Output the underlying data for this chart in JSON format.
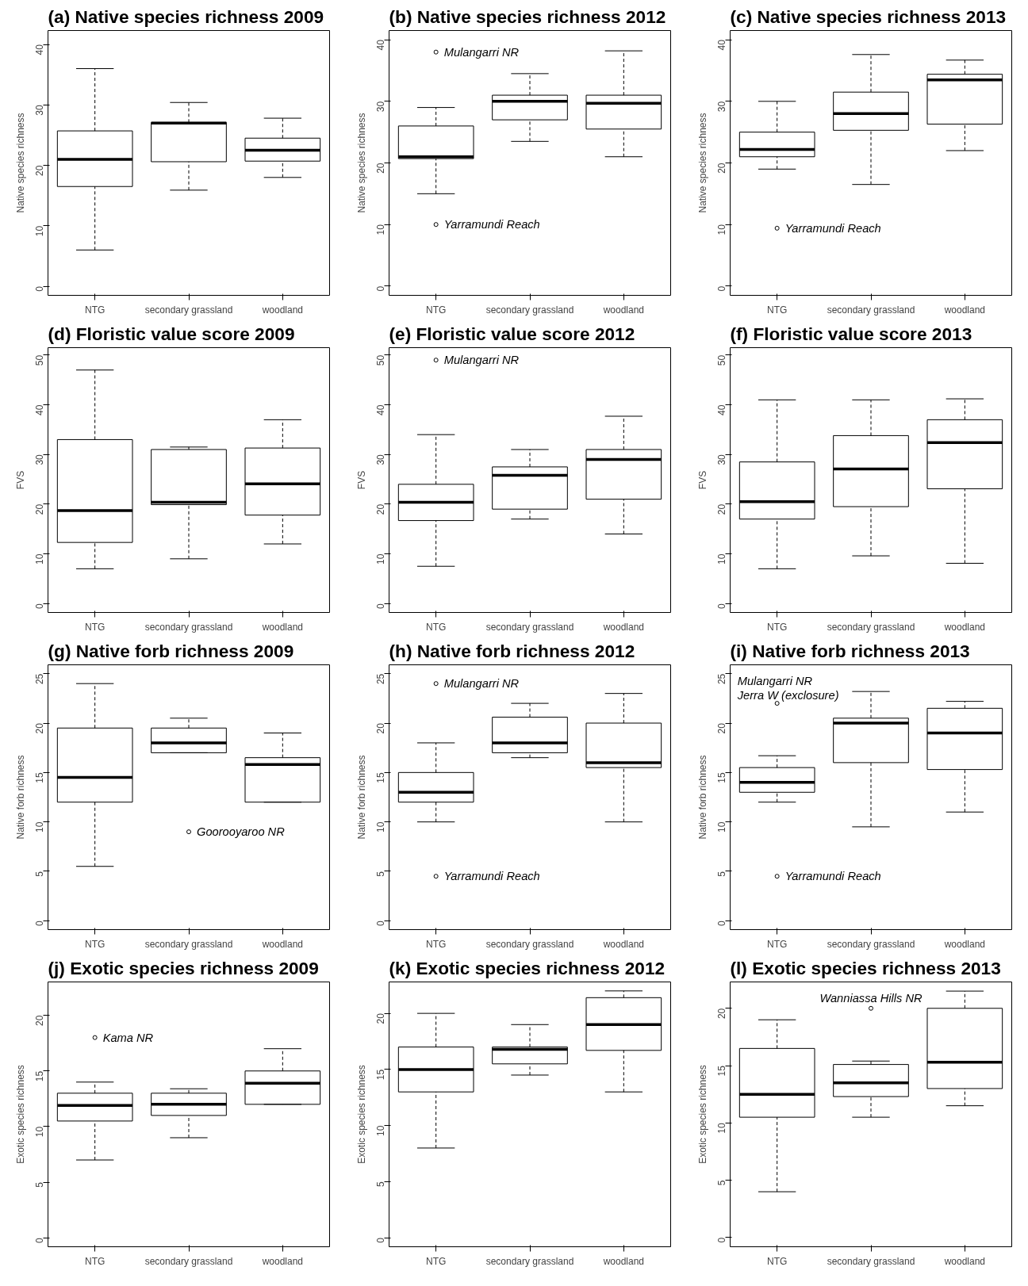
{
  "chart_data": [
    {
      "type": "box",
      "title": "(a) Native species richness 2009",
      "ylabel": "Native species richness",
      "categories": [
        "NTG",
        "secondary grassland",
        "woodland"
      ],
      "ylim": [
        -1.5,
        42.3
      ],
      "yticks": [
        0,
        10,
        20,
        30,
        40
      ],
      "boxes": [
        {
          "low": 6,
          "q1": 16.5,
          "median": 21,
          "q3": 25.7,
          "high": 36
        },
        {
          "low": 15.9,
          "q1": 20.6,
          "median": 27,
          "q3": 27.1,
          "high": 30.4
        },
        {
          "low": 18,
          "q1": 20.7,
          "median": 22.5,
          "q3": 24.5,
          "high": 27.8
        }
      ]
    },
    {
      "type": "box",
      "title": "(b) Native species richness 2012",
      "ylabel": "Native species richness",
      "categories": [
        "NTG",
        "secondary grassland",
        "woodland"
      ],
      "ylim": [
        -1.5,
        41.5
      ],
      "yticks": [
        0,
        10,
        20,
        30,
        40
      ],
      "boxes": [
        {
          "low": 15,
          "q1": 20.7,
          "median": 21,
          "q3": 26,
          "high": 29
        },
        {
          "low": 23.5,
          "q1": 27,
          "median": 30,
          "q3": 31,
          "high": 34.5
        },
        {
          "low": 21,
          "q1": 25.5,
          "median": 29.7,
          "q3": 31,
          "high": 38.2
        }
      ],
      "series": [
        {
          "type": "scatter",
          "x": [
            "NTG",
            "NTG"
          ],
          "values": [
            38,
            10
          ]
        }
      ],
      "annotations": [
        {
          "text": "Mulangarri NR",
          "x": "NTG",
          "y": 38
        },
        {
          "text": "Yarramundi Reach",
          "x": "NTG",
          "y": 10
        }
      ]
    },
    {
      "type": "box",
      "title": "(c) Native species richness 2013",
      "ylabel": "Native species richness",
      "categories": [
        "NTG",
        "secondary grassland",
        "woodland"
      ],
      "ylim": [
        -1.5,
        41.5
      ],
      "yticks": [
        0,
        10,
        20,
        30,
        40
      ],
      "boxes": [
        {
          "low": 19,
          "q1": 21,
          "median": 22.2,
          "q3": 25,
          "high": 30
        },
        {
          "low": 16.5,
          "q1": 25.3,
          "median": 28,
          "q3": 31.5,
          "high": 37.6
        },
        {
          "low": 22,
          "q1": 26.3,
          "median": 33.5,
          "q3": 34.4,
          "high": 36.7
        }
      ],
      "series": [
        {
          "type": "scatter",
          "x": [
            "NTG"
          ],
          "values": [
            9.4
          ]
        }
      ],
      "annotations": [
        {
          "text": "Yarramundi Reach",
          "x": "NTG",
          "y": 9.4
        }
      ]
    },
    {
      "type": "box",
      "title": "(d) Floristic value score 2009",
      "ylabel": "FVS",
      "categories": [
        "NTG",
        "secondary grassland",
        "woodland"
      ],
      "ylim": [
        -1.8,
        51.5
      ],
      "yticks": [
        0,
        10,
        20,
        30,
        40,
        50
      ],
      "boxes": [
        {
          "low": 7,
          "q1": 12.3,
          "median": 18.7,
          "q3": 33,
          "high": 47
        },
        {
          "low": 9,
          "q1": 19.9,
          "median": 20.4,
          "q3": 31,
          "high": 31.5
        },
        {
          "low": 12,
          "q1": 17.8,
          "median": 24.1,
          "q3": 31.3,
          "high": 37
        }
      ]
    },
    {
      "type": "box",
      "title": "(e) Floristic value score 2012",
      "ylabel": "FVS",
      "categories": [
        "NTG",
        "secondary grassland",
        "woodland"
      ],
      "ylim": [
        -1.8,
        51.5
      ],
      "yticks": [
        0,
        10,
        20,
        30,
        40,
        50
      ],
      "boxes": [
        {
          "low": 7.5,
          "q1": 16.7,
          "median": 20.4,
          "q3": 24,
          "high": 34
        },
        {
          "low": 17,
          "q1": 19,
          "median": 25.8,
          "q3": 27.5,
          "high": 31
        },
        {
          "low": 14,
          "q1": 21,
          "median": 29,
          "q3": 31,
          "high": 37.7
        }
      ],
      "series": [
        {
          "type": "scatter",
          "x": [
            "NTG"
          ],
          "values": [
            49
          ]
        }
      ],
      "annotations": [
        {
          "text": "Mulangarri NR",
          "x": "NTG",
          "y": 49
        }
      ]
    },
    {
      "type": "box",
      "title": "(f) Floristic value score 2013",
      "ylabel": "FVS",
      "categories": [
        "NTG",
        "secondary grassland",
        "woodland"
      ],
      "ylim": [
        -1.8,
        51.5
      ],
      "yticks": [
        0,
        10,
        20,
        30,
        40,
        50
      ],
      "boxes": [
        {
          "low": 7,
          "q1": 17,
          "median": 20.5,
          "q3": 28.5,
          "high": 41
        },
        {
          "low": 9.6,
          "q1": 19.5,
          "median": 27.1,
          "q3": 33.8,
          "high": 41
        },
        {
          "low": 8.1,
          "q1": 23.1,
          "median": 32.4,
          "q3": 37,
          "high": 41.2
        }
      ]
    },
    {
      "type": "box",
      "title": "(g) Native forb richness 2009",
      "ylabel": "Native forb richness",
      "categories": [
        "NTG",
        "secondary grassland",
        "woodland"
      ],
      "ylim": [
        -0.9,
        25.9
      ],
      "yticks": [
        0,
        5,
        10,
        15,
        20,
        25
      ],
      "boxes": [
        {
          "low": 5.5,
          "q1": 12,
          "median": 14.5,
          "q3": 19.5,
          "high": 24
        },
        {
          "low": 17,
          "q1": 17,
          "median": 18,
          "q3": 19.5,
          "high": 20.5
        },
        {
          "low": 12,
          "q1": 12,
          "median": 15.8,
          "q3": 16.5,
          "high": 19
        }
      ],
      "series": [
        {
          "type": "scatter",
          "x": [
            "secondary grassland"
          ],
          "values": [
            9
          ]
        }
      ],
      "annotations": [
        {
          "text": "Goorooyaroo NR",
          "x": "secondary grassland",
          "y": 9
        }
      ]
    },
    {
      "type": "box",
      "title": "(h) Native forb richness 2012",
      "ylabel": "Native forb richness",
      "categories": [
        "NTG",
        "secondary grassland",
        "woodland"
      ],
      "ylim": [
        -0.9,
        25.9
      ],
      "yticks": [
        0,
        5,
        10,
        15,
        20,
        25
      ],
      "boxes": [
        {
          "low": 10,
          "q1": 12,
          "median": 13,
          "q3": 15,
          "high": 18
        },
        {
          "low": 16.5,
          "q1": 17,
          "median": 18,
          "q3": 20.6,
          "high": 22
        },
        {
          "low": 10,
          "q1": 15.5,
          "median": 16,
          "q3": 20,
          "high": 23
        }
      ],
      "series": [
        {
          "type": "scatter",
          "x": [
            "NTG",
            "NTG"
          ],
          "values": [
            24,
            4.5
          ]
        }
      ],
      "annotations": [
        {
          "text": "Mulangarri NR",
          "x": "NTG",
          "y": 24
        },
        {
          "text": "Yarramundi Reach",
          "x": "NTG",
          "y": 4.5
        }
      ]
    },
    {
      "type": "box",
      "title": "(i) Native forb richness 2013",
      "ylabel": "Native forb richness",
      "categories": [
        "NTG",
        "secondary grassland",
        "woodland"
      ],
      "ylim": [
        -0.9,
        25.9
      ],
      "yticks": [
        0,
        5,
        10,
        15,
        20,
        25
      ],
      "boxes": [
        {
          "low": 12,
          "q1": 13,
          "median": 14,
          "q3": 15.5,
          "high": 16.7
        },
        {
          "low": 9.5,
          "q1": 16,
          "median": 20,
          "q3": 20.5,
          "high": 23.2
        },
        {
          "low": 11,
          "q1": 15.3,
          "median": 19,
          "q3": 21.5,
          "high": 22.2
        }
      ],
      "series": [
        {
          "type": "scatter",
          "x": [
            "NTG",
            "NTG"
          ],
          "values": [
            22,
            4.5
          ]
        }
      ],
      "annotations": [
        {
          "text": "Mulangarri NR",
          "x": "NTG",
          "y": 22
        },
        {
          "text": "Jerra W (exclosure)",
          "x": "NTG",
          "y": 22
        },
        {
          "text": "Yarramundi Reach",
          "x": "NTG",
          "y": 4.5
        }
      ]
    },
    {
      "type": "box",
      "title": "(j) Exotic species richness 2009",
      "ylabel": "Exotic species richness",
      "categories": [
        "NTG",
        "secondary grassland",
        "woodland"
      ],
      "ylim": [
        -0.8,
        23
      ],
      "yticks": [
        0,
        5,
        10,
        15,
        20
      ],
      "boxes": [
        {
          "low": 7,
          "q1": 10.5,
          "median": 11.9,
          "q3": 13,
          "high": 14
        },
        {
          "low": 9,
          "q1": 11,
          "median": 12,
          "q3": 13,
          "high": 13.4
        },
        {
          "low": 12,
          "q1": 12,
          "median": 13.9,
          "q3": 15,
          "high": 17
        }
      ],
      "series": [
        {
          "type": "scatter",
          "x": [
            "NTG"
          ],
          "values": [
            18
          ]
        }
      ],
      "annotations": [
        {
          "text": "Kama NR",
          "x": "NTG",
          "y": 18
        }
      ]
    },
    {
      "type": "box",
      "title": "(k) Exotic species richness 2012",
      "ylabel": "Exotic species richness",
      "categories": [
        "NTG",
        "secondary grassland",
        "woodland"
      ],
      "ylim": [
        -0.8,
        22.8
      ],
      "yticks": [
        0,
        5,
        10,
        15,
        20
      ],
      "boxes": [
        {
          "low": 8,
          "q1": 13,
          "median": 15,
          "q3": 17,
          "high": 20
        },
        {
          "low": 14.5,
          "q1": 15.5,
          "median": 16.8,
          "q3": 17,
          "high": 19
        },
        {
          "low": 13,
          "q1": 16.7,
          "median": 19,
          "q3": 21.4,
          "high": 22
        }
      ]
    },
    {
      "type": "box",
      "title": "(l) Exotic species richness 2013",
      "ylabel": "Exotic species richness",
      "categories": [
        "NTG",
        "secondary grassland",
        "woodland"
      ],
      "ylim": [
        -0.8,
        22.3
      ],
      "yticks": [
        0,
        5,
        10,
        15,
        20
      ],
      "boxes": [
        {
          "low": 4,
          "q1": 10.5,
          "median": 12.5,
          "q3": 16.5,
          "high": 19
        },
        {
          "low": 10.5,
          "q1": 12.3,
          "median": 13.5,
          "q3": 15.1,
          "high": 15.4
        },
        {
          "low": 11.5,
          "q1": 13,
          "median": 15.3,
          "q3": 20,
          "high": 21.5
        }
      ],
      "series": [
        {
          "type": "scatter",
          "x": [
            "secondary grassland"
          ],
          "values": [
            20
          ]
        }
      ],
      "annotations": [
        {
          "text": "Wanniassa Hills NR",
          "x": "secondary grassland",
          "y": 20
        }
      ]
    }
  ]
}
